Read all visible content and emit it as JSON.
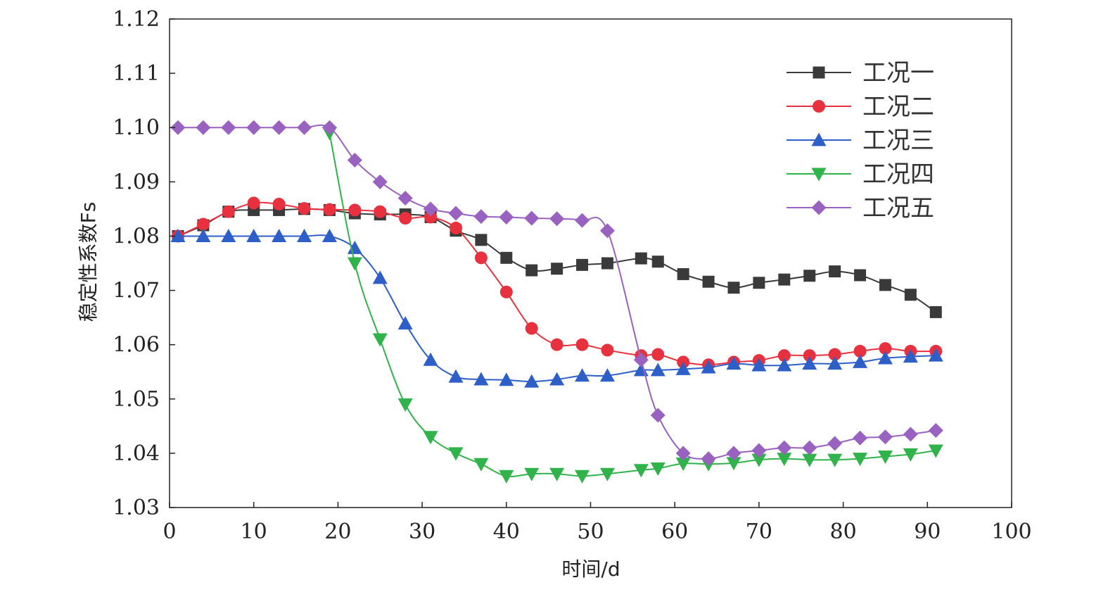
{
  "chart_data": {
    "type": "line",
    "xlabel": "时间/d",
    "ylabel": "稳定性系数Fs",
    "xlim": [
      0,
      100
    ],
    "ylim": [
      1.03,
      1.12
    ],
    "xticks": [
      0,
      10,
      20,
      30,
      40,
      50,
      60,
      70,
      80,
      90,
      100
    ],
    "yticks": [
      1.03,
      1.04,
      1.05,
      1.06,
      1.07,
      1.08,
      1.09,
      1.1,
      1.11,
      1.12
    ],
    "ytick_labels": [
      "1.03",
      "1.04",
      "1.05",
      "1.06",
      "1.07",
      "1.08",
      "1.09",
      "1.10",
      "1.11",
      "1.12"
    ],
    "grid": false,
    "legend_position": "top-right",
    "series": [
      {
        "name": "工况一",
        "color": "#3a3a3a",
        "marker": "square",
        "x": [
          1,
          4,
          7,
          10,
          13,
          16,
          19,
          22,
          25,
          28,
          31,
          34,
          37,
          40,
          43,
          46,
          49,
          52,
          56,
          58,
          61,
          64,
          67,
          70,
          73,
          76,
          79,
          82,
          85,
          88,
          91
        ],
        "y": [
          1.08,
          1.082,
          1.0845,
          1.0848,
          1.0848,
          1.085,
          1.0848,
          1.0842,
          1.084,
          1.084,
          1.0835,
          1.081,
          1.0793,
          1.076,
          1.0737,
          1.074,
          1.0747,
          1.075,
          1.0759,
          1.0753,
          1.073,
          1.0716,
          1.0705,
          1.0714,
          1.072,
          1.0727,
          1.0735,
          1.0728,
          1.071,
          1.0692,
          1.066
        ]
      },
      {
        "name": "工况二",
        "color": "#e8303e",
        "marker": "circle",
        "x": [
          1,
          4,
          7,
          10,
          13,
          16,
          19,
          22,
          25,
          28,
          31,
          34,
          37,
          40,
          43,
          46,
          49,
          52,
          56,
          58,
          61,
          64,
          67,
          70,
          73,
          76,
          79,
          82,
          85,
          88,
          91
        ],
        "y": [
          1.08,
          1.0822,
          1.0845,
          1.0861,
          1.0859,
          1.0851,
          1.0849,
          1.0848,
          1.0845,
          1.0833,
          1.0835,
          1.0815,
          1.076,
          1.0697,
          1.063,
          1.06,
          1.06,
          1.059,
          1.058,
          1.0582,
          1.0568,
          1.0563,
          1.0568,
          1.0571,
          1.058,
          1.058,
          1.0582,
          1.0588,
          1.0593,
          1.0588,
          1.0588
        ]
      },
      {
        "name": "工况三",
        "color": "#2e5fc9",
        "marker": "triangle-up",
        "x": [
          1,
          4,
          7,
          10,
          13,
          16,
          19,
          22,
          25,
          28,
          31,
          34,
          37,
          40,
          43,
          46,
          49,
          52,
          56,
          58,
          61,
          64,
          67,
          70,
          73,
          76,
          79,
          82,
          85,
          88,
          91
        ],
        "y": [
          1.08,
          1.08,
          1.08,
          1.08,
          1.08,
          1.08,
          1.08,
          1.0778,
          1.0723,
          1.0639,
          1.0572,
          1.0541,
          1.0536,
          1.0535,
          1.0532,
          1.0536,
          1.0543,
          1.0543,
          1.0553,
          1.0553,
          1.0555,
          1.0558,
          1.0565,
          1.0562,
          1.0562,
          1.0565,
          1.0565,
          1.0568,
          1.0575,
          1.0578,
          1.058
        ]
      },
      {
        "name": "工况四",
        "color": "#2fb34a",
        "marker": "triangle-down",
        "x": [
          19,
          22,
          25,
          28,
          31,
          34,
          37,
          40,
          43,
          46,
          49,
          52,
          56,
          58,
          61,
          64,
          67,
          70,
          73,
          76,
          79,
          82,
          85,
          88,
          91
        ],
        "y": [
          1.099,
          1.075,
          1.061,
          1.049,
          1.043,
          1.04,
          1.038,
          1.0358,
          1.0362,
          1.0362,
          1.0358,
          1.0362,
          1.0369,
          1.0372,
          1.0381,
          1.038,
          1.0382,
          1.0388,
          1.039,
          1.0388,
          1.0388,
          1.039,
          1.0394,
          1.0398,
          1.0405
        ]
      },
      {
        "name": "工况五",
        "color": "#9a62c0",
        "marker": "diamond",
        "x": [
          1,
          4,
          7,
          10,
          13,
          16,
          19,
          22,
          25,
          28,
          31,
          34,
          37,
          40,
          43,
          46,
          49,
          52,
          56,
          58,
          61,
          64,
          67,
          70,
          73,
          76,
          79,
          82,
          85,
          88,
          91
        ],
        "y": [
          1.1,
          1.1,
          1.1,
          1.1,
          1.1,
          1.1,
          1.1,
          1.094,
          1.09,
          1.087,
          1.085,
          1.0842,
          1.0836,
          1.0835,
          1.0833,
          1.0832,
          1.0829,
          1.081,
          1.0572,
          1.047,
          1.04,
          1.039,
          1.04,
          1.0405,
          1.041,
          1.041,
          1.0418,
          1.0428,
          1.043,
          1.0435,
          1.0442
        ]
      }
    ]
  }
}
